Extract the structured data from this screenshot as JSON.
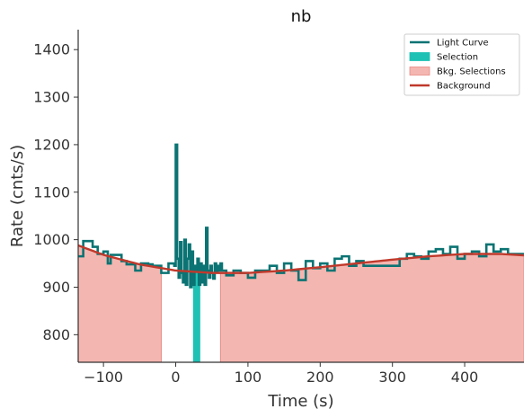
{
  "chart_data": {
    "type": "line",
    "title": "nb",
    "xlabel": "Time (s)",
    "ylabel": "Rate (cnts/s)",
    "xlim": [
      -135,
      482
    ],
    "ylim": [
      742,
      1442
    ],
    "xticks": [
      -100,
      0,
      100,
      200,
      300,
      400
    ],
    "yticks": [
      800,
      900,
      1000,
      1100,
      1200,
      1300,
      1400
    ],
    "xtick_labels": [
      "−100",
      "0",
      "100",
      "200",
      "300",
      "400"
    ],
    "ytick_labels": [
      "800",
      "900",
      "1000",
      "1100",
      "1200",
      "1300",
      "1400"
    ],
    "grid": false,
    "legend_position": "top-right",
    "colors": {
      "light_curve": "#0b7373",
      "selection": "#1fc1b4",
      "bkg_selection_fill": "#f4b6b0",
      "bkg_selection_edge": "#e98a84",
      "background": "#c0392b",
      "axis": "#333333"
    },
    "legend": [
      {
        "label": "Light Curve",
        "kind": "line",
        "color": "#0b7373"
      },
      {
        "label": "Selection",
        "kind": "patch",
        "color": "#1fc1b4"
      },
      {
        "label": "Bkg. Selections",
        "kind": "patch",
        "color": "#f4b6b0"
      },
      {
        "label": "Background",
        "kind": "line",
        "color": "#c0392b"
      }
    ],
    "bkg_selections": [
      {
        "start": -135,
        "end": -20
      },
      {
        "start": 62,
        "end": 482
      }
    ],
    "selection": {
      "start": 24,
      "end": 34
    },
    "series": [
      {
        "name": "Light Curve",
        "kind": "step",
        "x": [
          -135,
          -128,
          -115,
          -108,
          -100,
          -94,
          -90,
          -75,
          -68,
          -56,
          -48,
          -38,
          -32,
          -20,
          -10,
          -2,
          0,
          2,
          4,
          6,
          8,
          10,
          12,
          14,
          16,
          18,
          20,
          22,
          24,
          26,
          28,
          30,
          32,
          34,
          36,
          38,
          40,
          42,
          44,
          46,
          48,
          50,
          52,
          54,
          56,
          58,
          60,
          62,
          64,
          70,
          80,
          90,
          100,
          110,
          120,
          130,
          140,
          150,
          160,
          170,
          180,
          190,
          200,
          210,
          220,
          230,
          240,
          250,
          260,
          270,
          280,
          290,
          300,
          310,
          320,
          330,
          340,
          350,
          360,
          370,
          380,
          390,
          400,
          410,
          420,
          430,
          440,
          450,
          460,
          470,
          482
        ],
        "y": [
          965,
          997,
          985,
          970,
          975,
          950,
          968,
          955,
          948,
          935,
          950,
          948,
          945,
          930,
          950,
          945,
          1200,
          960,
          920,
          995,
          930,
          910,
          1000,
          905,
          960,
          990,
          900,
          975,
          905,
          945,
          935,
          960,
          905,
          950,
          910,
          945,
          905,
          1025,
          935,
          920,
          945,
          930,
          918,
          950,
          932,
          945,
          935,
          950,
          935,
          925,
          935,
          930,
          920,
          935,
          935,
          945,
          930,
          950,
          935,
          915,
          955,
          940,
          950,
          935,
          960,
          965,
          945,
          955,
          945,
          945,
          945,
          945,
          945,
          960,
          970,
          965,
          960,
          975,
          980,
          970,
          985,
          960,
          970,
          975,
          965,
          990,
          975,
          980,
          970,
          970,
          970
        ]
      },
      {
        "name": "Background",
        "kind": "polynomial",
        "x": [
          -135,
          -100,
          -50,
          0,
          50,
          100,
          150,
          200,
          250,
          300,
          350,
          400,
          450,
          482
        ],
        "y": [
          988,
          968,
          948,
          935,
          930,
          930,
          935,
          942,
          950,
          958,
          965,
          970,
          970,
          967
        ]
      }
    ]
  }
}
